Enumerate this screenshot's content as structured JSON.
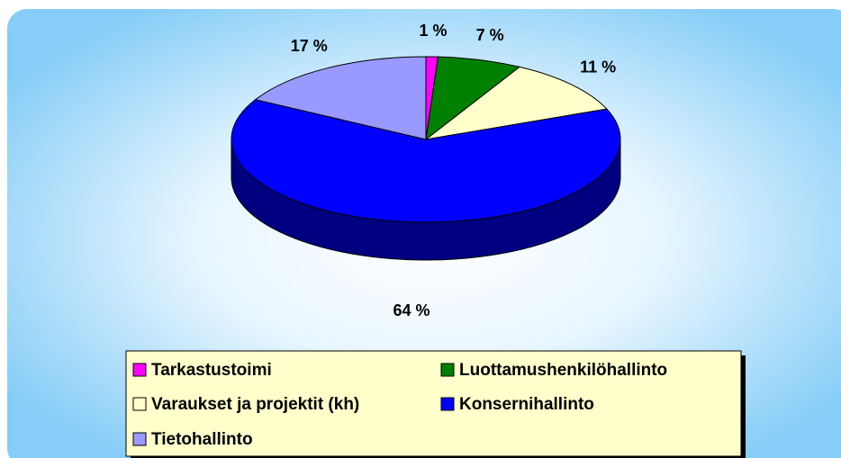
{
  "chart_data": {
    "type": "pie",
    "three_d": true,
    "categories": [
      "Tarkastustoimi",
      "Luottamushenkilöhallinto",
      "Varaukset ja projektit (kh)",
      "Konsernihallinto",
      "Tietohallinto"
    ],
    "values": [
      1,
      7,
      11,
      64,
      17
    ],
    "value_labels": [
      "1 %",
      "7 %",
      "11 %",
      "64 %",
      "17 %"
    ],
    "colors": [
      "#ff00ff",
      "#008000",
      "#ffffcc",
      "#0000ff",
      "#9999ff"
    ],
    "legend": "bottom"
  }
}
